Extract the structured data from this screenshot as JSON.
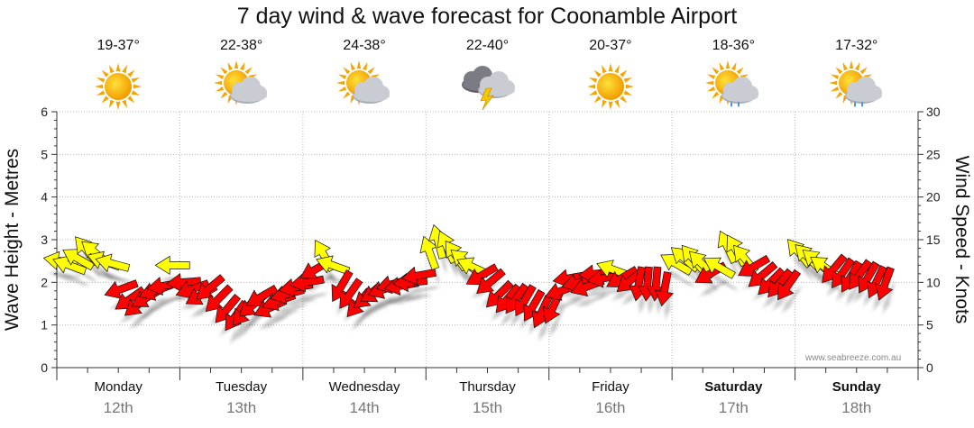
{
  "chart_data": {
    "type": "scatter",
    "title": "7 day wind & wave forecast for Coonamble Airport",
    "ylabel": "Wave Height - Metres",
    "y2label": "Wind Speed - Knots",
    "ylim": [
      0,
      6
    ],
    "y2lim": [
      0,
      30
    ],
    "yticks": [
      "0",
      "1",
      "2",
      "3",
      "4",
      "5",
      "6"
    ],
    "y2ticks": [
      "0",
      "5",
      "10",
      "15",
      "20",
      "25",
      "30"
    ],
    "grid": true,
    "days": [
      {
        "name": "Monday",
        "date": "12th",
        "temp": "19-37°",
        "icon": "sunny",
        "weekend": false
      },
      {
        "name": "Tuesday",
        "date": "13th",
        "temp": "22-38°",
        "icon": "sun-cloud",
        "weekend": false
      },
      {
        "name": "Wednesday",
        "date": "14th",
        "temp": "24-38°",
        "icon": "sun-cloud",
        "weekend": false
      },
      {
        "name": "Thursday",
        "date": "15th",
        "temp": "22-40°",
        "icon": "storm",
        "weekend": false
      },
      {
        "name": "Friday",
        "date": "16th",
        "temp": "20-37°",
        "icon": "sunny",
        "weekend": false
      },
      {
        "name": "Saturday",
        "date": "17th",
        "temp": "18-36°",
        "icon": "sun-cloud-rain",
        "weekend": true
      },
      {
        "name": "Sunday",
        "date": "18th",
        "temp": "17-32°",
        "icon": "sun-cloud-rain",
        "weekend": true
      }
    ],
    "legend": {
      "light_wind": "#ffff00",
      "strong_wind": "#ff0000"
    },
    "wind_series": {
      "name": "Wind (kn)",
      "points": [
        {
          "day": 0.03,
          "kn": 12.5,
          "dir": 190,
          "c": "y"
        },
        {
          "day": 0.1,
          "kn": 12.0,
          "dir": 200,
          "c": "y"
        },
        {
          "day": 0.17,
          "kn": 12.8,
          "dir": 210,
          "c": "y"
        },
        {
          "day": 0.24,
          "kn": 13.8,
          "dir": 230,
          "c": "y"
        },
        {
          "day": 0.31,
          "kn": 13.5,
          "dir": 220,
          "c": "y"
        },
        {
          "day": 0.38,
          "kn": 12.5,
          "dir": 200,
          "c": "y"
        },
        {
          "day": 0.45,
          "kn": 12.2,
          "dir": 195,
          "c": "y"
        },
        {
          "day": 0.52,
          "kn": 9.2,
          "dir": 160,
          "c": "r"
        },
        {
          "day": 0.59,
          "kn": 8.0,
          "dir": 145,
          "c": "r"
        },
        {
          "day": 0.66,
          "kn": 7.4,
          "dir": 140,
          "c": "r"
        },
        {
          "day": 0.73,
          "kn": 8.2,
          "dir": 150,
          "c": "r"
        },
        {
          "day": 0.8,
          "kn": 9.0,
          "dir": 160,
          "c": "r"
        },
        {
          "day": 0.87,
          "kn": 9.6,
          "dir": 170,
          "c": "r"
        },
        {
          "day": 0.94,
          "kn": 12.0,
          "dir": 180,
          "c": "y"
        },
        {
          "day": 1.03,
          "kn": 10.0,
          "dir": 175,
          "c": "r"
        },
        {
          "day": 1.1,
          "kn": 9.2,
          "dir": 160,
          "c": "r"
        },
        {
          "day": 1.17,
          "kn": 8.5,
          "dir": 150,
          "c": "r"
        },
        {
          "day": 1.24,
          "kn": 9.3,
          "dir": 140,
          "c": "r"
        },
        {
          "day": 1.31,
          "kn": 8.0,
          "dir": 135,
          "c": "r"
        },
        {
          "day": 1.38,
          "kn": 6.8,
          "dir": 130,
          "c": "r"
        },
        {
          "day": 1.45,
          "kn": 6.0,
          "dir": 125,
          "c": "r"
        },
        {
          "day": 1.52,
          "kn": 6.5,
          "dir": 130,
          "c": "r"
        },
        {
          "day": 1.59,
          "kn": 7.3,
          "dir": 140,
          "c": "r"
        },
        {
          "day": 1.66,
          "kn": 8.3,
          "dir": 150,
          "c": "r"
        },
        {
          "day": 1.73,
          "kn": 7.0,
          "dir": 155,
          "c": "r"
        },
        {
          "day": 1.8,
          "kn": 7.8,
          "dir": 160,
          "c": "r"
        },
        {
          "day": 1.87,
          "kn": 8.6,
          "dir": 165,
          "c": "r"
        },
        {
          "day": 1.94,
          "kn": 9.4,
          "dir": 170,
          "c": "r"
        },
        {
          "day": 2.03,
          "kn": 10.0,
          "dir": 170,
          "c": "r"
        },
        {
          "day": 2.1,
          "kn": 11.5,
          "dir": 150,
          "c": "r"
        },
        {
          "day": 2.17,
          "kn": 13.2,
          "dir": 240,
          "c": "y"
        },
        {
          "day": 2.24,
          "kn": 12.0,
          "dir": 200,
          "c": "y"
        },
        {
          "day": 2.31,
          "kn": 9.5,
          "dir": 120,
          "c": "r"
        },
        {
          "day": 2.38,
          "kn": 8.6,
          "dir": 125,
          "c": "r"
        },
        {
          "day": 2.45,
          "kn": 7.5,
          "dir": 130,
          "c": "r"
        },
        {
          "day": 2.52,
          "kn": 8.3,
          "dir": 140,
          "c": "r"
        },
        {
          "day": 2.59,
          "kn": 8.8,
          "dir": 150,
          "c": "r"
        },
        {
          "day": 2.66,
          "kn": 9.2,
          "dir": 160,
          "c": "r"
        },
        {
          "day": 2.73,
          "kn": 9.8,
          "dir": 165,
          "c": "r"
        },
        {
          "day": 2.8,
          "kn": 9.6,
          "dir": 170,
          "c": "r"
        },
        {
          "day": 2.87,
          "kn": 10.0,
          "dir": 175,
          "c": "r"
        },
        {
          "day": 2.94,
          "kn": 10.8,
          "dir": 170,
          "c": "r"
        },
        {
          "day": 3.03,
          "kn": 13.5,
          "dir": 250,
          "c": "y"
        },
        {
          "day": 3.1,
          "kn": 14.8,
          "dir": 255,
          "c": "y"
        },
        {
          "day": 3.17,
          "kn": 14.2,
          "dir": 245,
          "c": "y"
        },
        {
          "day": 3.24,
          "kn": 13.2,
          "dir": 235,
          "c": "y"
        },
        {
          "day": 3.31,
          "kn": 12.5,
          "dir": 220,
          "c": "y"
        },
        {
          "day": 3.38,
          "kn": 11.8,
          "dir": 205,
          "c": "y"
        },
        {
          "day": 3.45,
          "kn": 10.8,
          "dir": 150,
          "c": "r"
        },
        {
          "day": 3.52,
          "kn": 10.0,
          "dir": 140,
          "c": "r"
        },
        {
          "day": 3.59,
          "kn": 8.5,
          "dir": 135,
          "c": "r"
        },
        {
          "day": 3.66,
          "kn": 8.0,
          "dir": 130,
          "c": "r"
        },
        {
          "day": 3.73,
          "kn": 8.0,
          "dir": 125,
          "c": "r"
        },
        {
          "day": 3.8,
          "kn": 7.8,
          "dir": 120,
          "c": "r"
        },
        {
          "day": 3.87,
          "kn": 7.2,
          "dir": 120,
          "c": "r"
        },
        {
          "day": 3.94,
          "kn": 6.5,
          "dir": 115,
          "c": "r"
        },
        {
          "day": 4.03,
          "kn": 7.0,
          "dir": 115,
          "c": "r"
        },
        {
          "day": 4.1,
          "kn": 9.0,
          "dir": 160,
          "c": "r"
        },
        {
          "day": 4.17,
          "kn": 10.5,
          "dir": 170,
          "c": "r"
        },
        {
          "day": 4.24,
          "kn": 10.0,
          "dir": 165,
          "c": "r"
        },
        {
          "day": 4.31,
          "kn": 9.5,
          "dir": 160,
          "c": "r"
        },
        {
          "day": 4.38,
          "kn": 11.0,
          "dir": 175,
          "c": "r"
        },
        {
          "day": 4.45,
          "kn": 10.5,
          "dir": 170,
          "c": "r"
        },
        {
          "day": 4.52,
          "kn": 11.5,
          "dir": 200,
          "c": "y"
        },
        {
          "day": 4.59,
          "kn": 10.5,
          "dir": 150,
          "c": "r"
        },
        {
          "day": 4.66,
          "kn": 10.2,
          "dir": 140,
          "c": "r"
        },
        {
          "day": 4.73,
          "kn": 9.8,
          "dir": 100,
          "c": "r"
        },
        {
          "day": 4.8,
          "kn": 9.8,
          "dir": 95,
          "c": "r"
        },
        {
          "day": 4.87,
          "kn": 9.8,
          "dir": 95,
          "c": "r"
        },
        {
          "day": 4.94,
          "kn": 9.2,
          "dir": 100,
          "c": "r"
        },
        {
          "day": 5.03,
          "kn": 12.2,
          "dir": 210,
          "c": "y"
        },
        {
          "day": 5.1,
          "kn": 12.8,
          "dir": 220,
          "c": "y"
        },
        {
          "day": 5.17,
          "kn": 12.8,
          "dir": 230,
          "c": "y"
        },
        {
          "day": 5.24,
          "kn": 12.2,
          "dir": 225,
          "c": "y"
        },
        {
          "day": 5.31,
          "kn": 11.0,
          "dir": 150,
          "c": "r"
        },
        {
          "day": 5.38,
          "kn": 11.8,
          "dir": 210,
          "c": "y"
        },
        {
          "day": 5.45,
          "kn": 14.2,
          "dir": 245,
          "c": "y"
        },
        {
          "day": 5.52,
          "kn": 13.8,
          "dir": 240,
          "c": "y"
        },
        {
          "day": 5.59,
          "kn": 12.8,
          "dir": 230,
          "c": "y"
        },
        {
          "day": 5.66,
          "kn": 11.8,
          "dir": 150,
          "c": "r"
        },
        {
          "day": 5.73,
          "kn": 10.8,
          "dir": 140,
          "c": "r"
        },
        {
          "day": 5.8,
          "kn": 10.0,
          "dir": 135,
          "c": "r"
        },
        {
          "day": 5.87,
          "kn": 9.8,
          "dir": 130,
          "c": "r"
        },
        {
          "day": 5.94,
          "kn": 9.6,
          "dir": 125,
          "c": "r"
        },
        {
          "day": 6.03,
          "kn": 13.5,
          "dir": 230,
          "c": "y"
        },
        {
          "day": 6.1,
          "kn": 13.0,
          "dir": 225,
          "c": "y"
        },
        {
          "day": 6.17,
          "kn": 12.5,
          "dir": 220,
          "c": "y"
        },
        {
          "day": 6.24,
          "kn": 11.8,
          "dir": 215,
          "c": "y"
        },
        {
          "day": 6.31,
          "kn": 11.5,
          "dir": 130,
          "c": "r"
        },
        {
          "day": 6.38,
          "kn": 11.0,
          "dir": 125,
          "c": "r"
        },
        {
          "day": 6.45,
          "kn": 10.6,
          "dir": 120,
          "c": "r"
        },
        {
          "day": 6.52,
          "kn": 10.8,
          "dir": 125,
          "c": "r"
        },
        {
          "day": 6.59,
          "kn": 10.5,
          "dir": 120,
          "c": "r"
        },
        {
          "day": 6.66,
          "kn": 10.0,
          "dir": 115,
          "c": "r"
        },
        {
          "day": 6.73,
          "kn": 9.8,
          "dir": 110,
          "c": "r"
        }
      ]
    }
  },
  "watermark": "www.seabreeze.com.au"
}
